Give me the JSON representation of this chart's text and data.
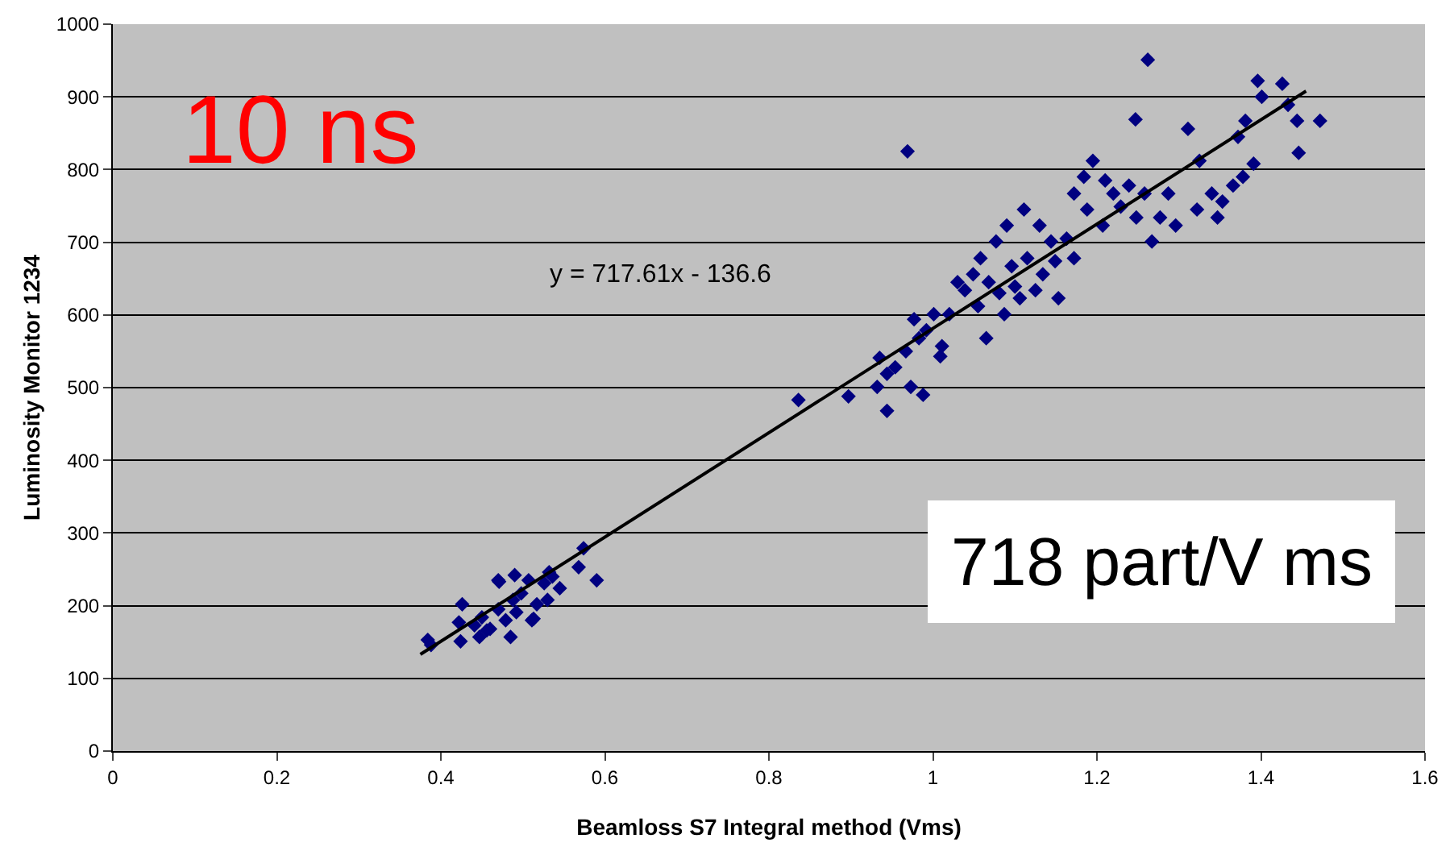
{
  "chart_data": {
    "type": "scatter",
    "xlabel": "Beamloss S7 Integral method (Vms)",
    "ylabel": "Luminosity Monitor 1234",
    "annotations": [
      "y = 717.61x - 136.6",
      "10 ns",
      "718 part/V ms"
    ],
    "xlim": [
      0,
      1.6
    ],
    "xticks": [
      0,
      0.2,
      0.4,
      0.6,
      0.8,
      1,
      1.2,
      1.4,
      1.6
    ],
    "ylim": [
      0,
      1000
    ],
    "yticks": [
      0,
      100,
      200,
      300,
      400,
      500,
      600,
      700,
      800,
      900,
      1000
    ],
    "grid": "y",
    "marker": "diamond",
    "series": [
      {
        "color": "#000080",
        "x": [
          0.384,
          0.388,
          0.422,
          0.426,
          0.424,
          0.441,
          0.45,
          0.47,
          0.47,
          0.488,
          0.498,
          0.507,
          0.526,
          0.545,
          0.574,
          0.59,
          0.46,
          0.479,
          0.492,
          0.517,
          0.53,
          0.511,
          0.485,
          0.447,
          0.536,
          0.471,
          0.49,
          0.568,
          0.513,
          0.456,
          0.532,
          0.836,
          0.897,
          0.935,
          0.944,
          0.973,
          0.967,
          0.977,
          0.992,
          1.001,
          1.011,
          1.02,
          1.039,
          1.055,
          1.068,
          1.081,
          1.096,
          1.106,
          1.115,
          1.134,
          1.153,
          1.144,
          1.163,
          1.172,
          1.188,
          1.195,
          1.207,
          1.22,
          1.229,
          1.239,
          1.248,
          1.258,
          1.267,
          1.262,
          1.247,
          0.969,
          1.009,
          0.988,
          1.311,
          1.325,
          1.34,
          1.347,
          1.372,
          1.378,
          1.391,
          1.401,
          1.426,
          1.396,
          1.444,
          1.446,
          1.472,
          1.287,
          1.296,
          1.322,
          1.277,
          1.353,
          1.366,
          1.381,
          1.433,
          1.058,
          1.077,
          1.03,
          1.09,
          1.111,
          1.13,
          1.172,
          1.184,
          1.21,
          0.954,
          0.983,
          1.049,
          1.065,
          1.087,
          1.1,
          1.125,
          1.149,
          0.932,
          0.944
        ],
        "values": [
          153,
          146,
          177,
          202,
          151,
          173,
          184,
          195,
          235,
          208,
          217,
          235,
          231,
          224,
          279,
          235,
          168,
          180,
          191,
          202,
          208,
          180,
          157,
          157,
          240,
          233,
          242,
          253,
          182,
          166,
          246,
          483,
          488,
          541,
          519,
          501,
          550,
          594,
          579,
          601,
          557,
          601,
          634,
          612,
          645,
          630,
          667,
          623,
          678,
          656,
          623,
          701,
          705,
          678,
          745,
          812,
          723,
          767,
          749,
          778,
          734,
          767,
          701,
          951,
          869,
          825,
          543,
          490,
          856,
          812,
          767,
          734,
          845,
          790,
          808,
          900,
          918,
          922,
          867,
          823,
          867,
          767,
          723,
          745,
          734,
          756,
          778,
          867,
          889,
          678,
          701,
          645,
          723,
          745,
          723,
          767,
          790,
          785,
          528,
          568,
          656,
          568,
          601,
          639,
          634,
          674,
          501,
          468
        ]
      },
      {
        "type": "line",
        "color": "#000000",
        "marker": "none",
        "line_style": "solid",
        "x": [
          0.375,
          1.455
        ],
        "values": [
          133,
          908
        ]
      }
    ]
  }
}
